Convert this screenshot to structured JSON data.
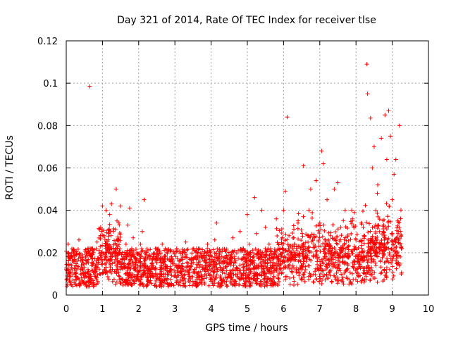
{
  "chart_data": {
    "type": "scatter",
    "title": "Day 321 of 2014, Rate Of TEC Index for receiver tlse",
    "xlabel": "GPS time / hours",
    "ylabel": "ROTI / TECUs",
    "xlim": [
      0,
      10
    ],
    "ylim": [
      0,
      0.12
    ],
    "xticks": [
      "0",
      "1",
      "2",
      "3",
      "4",
      "5",
      "6",
      "7",
      "8",
      "9",
      "10"
    ],
    "yticks": [
      "0",
      "0.02",
      "0.04",
      "0.06",
      "0.08",
      "0.1",
      "0.12"
    ],
    "grid": true,
    "marker": "+",
    "color": "#ff0000",
    "series": [
      {
        "name": "ROTI",
        "points": [
          [
            0.0,
            0.012
          ],
          [
            0.05,
            0.024
          ],
          [
            0.08,
            0.009
          ],
          [
            0.1,
            0.018
          ],
          [
            0.15,
            0.013
          ],
          [
            0.2,
            0.021
          ],
          [
            0.25,
            0.01
          ],
          [
            0.3,
            0.016
          ],
          [
            0.35,
            0.026
          ],
          [
            0.4,
            0.012
          ],
          [
            0.45,
            0.019
          ],
          [
            0.5,
            0.008
          ],
          [
            0.55,
            0.015
          ],
          [
            0.6,
            0.022
          ],
          [
            0.65,
            0.0985
          ],
          [
            0.7,
            0.014
          ],
          [
            0.75,
            0.02
          ],
          [
            0.8,
            0.011
          ],
          [
            0.85,
            0.025
          ],
          [
            0.9,
            0.017
          ],
          [
            0.95,
            0.032
          ],
          [
            1.0,
            0.042
          ],
          [
            1.05,
            0.028
          ],
          [
            1.1,
            0.04
          ],
          [
            1.15,
            0.022
          ],
          [
            1.2,
            0.038
          ],
          [
            1.25,
            0.043
          ],
          [
            1.3,
            0.03
          ],
          [
            1.35,
            0.018
          ],
          [
            1.38,
            0.05
          ],
          [
            1.4,
            0.035
          ],
          [
            1.45,
            0.026
          ],
          [
            1.5,
            0.042
          ],
          [
            1.55,
            0.02
          ],
          [
            1.6,
            0.015
          ],
          [
            1.65,
            0.024
          ],
          [
            1.7,
            0.033
          ],
          [
            1.75,
            0.041
          ],
          [
            1.8,
            0.018
          ],
          [
            1.85,
            0.027
          ],
          [
            1.9,
            0.013
          ],
          [
            1.95,
            0.02
          ],
          [
            2.0,
            0.016
          ],
          [
            2.05,
            0.024
          ],
          [
            2.1,
            0.03
          ],
          [
            2.15,
            0.045
          ],
          [
            2.2,
            0.019
          ],
          [
            2.25,
            0.012
          ],
          [
            2.3,
            0.017
          ],
          [
            2.4,
            0.014
          ],
          [
            2.5,
            0.019
          ],
          [
            2.6,
            0.012
          ],
          [
            2.65,
            0.024
          ],
          [
            2.7,
            0.016
          ],
          [
            2.8,
            0.011
          ],
          [
            2.9,
            0.018
          ],
          [
            3.0,
            0.014
          ],
          [
            3.05,
            0.022
          ],
          [
            3.1,
            0.013
          ],
          [
            3.2,
            0.02
          ],
          [
            3.3,
            0.025
          ],
          [
            3.4,
            0.012
          ],
          [
            3.5,
            0.017
          ],
          [
            3.6,
            0.022
          ],
          [
            3.7,
            0.011
          ],
          [
            3.8,
            0.016
          ],
          [
            3.9,
            0.024
          ],
          [
            4.0,
            0.015
          ],
          [
            4.1,
            0.026
          ],
          [
            4.15,
            0.034
          ],
          [
            4.2,
            0.018
          ],
          [
            4.3,
            0.012
          ],
          [
            4.4,
            0.021
          ],
          [
            4.5,
            0.015
          ],
          [
            4.6,
            0.027
          ],
          [
            4.7,
            0.013
          ],
          [
            4.8,
            0.03
          ],
          [
            4.9,
            0.018
          ],
          [
            5.0,
            0.038
          ],
          [
            5.05,
            0.024
          ],
          [
            5.1,
            0.016
          ],
          [
            5.2,
            0.046
          ],
          [
            5.25,
            0.029
          ],
          [
            5.3,
            0.02
          ],
          [
            5.4,
            0.04
          ],
          [
            5.45,
            0.014
          ],
          [
            5.5,
            0.032
          ],
          [
            5.6,
            0.024
          ],
          [
            5.7,
            0.018
          ],
          [
            5.8,
            0.036
          ],
          [
            5.9,
            0.022
          ],
          [
            6.0,
            0.04
          ],
          [
            6.05,
            0.049
          ],
          [
            6.1,
            0.084
          ],
          [
            6.15,
            0.028
          ],
          [
            6.2,
            0.016
          ],
          [
            6.3,
            0.024
          ],
          [
            6.4,
            0.034
          ],
          [
            6.5,
            0.012
          ],
          [
            6.55,
            0.061
          ],
          [
            6.6,
            0.018
          ],
          [
            6.7,
            0.04
          ],
          [
            6.75,
            0.05
          ],
          [
            6.8,
            0.026
          ],
          [
            6.9,
            0.054
          ],
          [
            7.0,
            0.034
          ],
          [
            7.05,
            0.068
          ],
          [
            7.1,
            0.062
          ],
          [
            7.15,
            0.02
          ],
          [
            7.2,
            0.045
          ],
          [
            7.3,
            0.028
          ],
          [
            7.4,
            0.05
          ],
          [
            7.5,
            0.053
          ],
          [
            7.6,
            0.022
          ],
          [
            7.7,
            0.04
          ],
          [
            7.8,
            0.018
          ],
          [
            7.9,
            0.036
          ],
          [
            8.0,
            0.026
          ],
          [
            8.1,
            0.02
          ],
          [
            8.2,
            0.032
          ],
          [
            8.3,
            0.109
          ],
          [
            8.32,
            0.095
          ],
          [
            8.4,
            0.0835
          ],
          [
            8.45,
            0.06
          ],
          [
            8.5,
            0.07
          ],
          [
            8.55,
            0.04
          ],
          [
            8.6,
            0.052
          ],
          [
            8.7,
            0.074
          ],
          [
            8.75,
            0.03
          ],
          [
            8.8,
            0.085
          ],
          [
            8.85,
            0.064
          ],
          [
            8.9,
            0.087
          ],
          [
            8.95,
            0.075
          ],
          [
            9.0,
            0.045
          ],
          [
            9.05,
            0.057
          ],
          [
            9.1,
            0.064
          ],
          [
            9.15,
            0.035
          ],
          [
            9.2,
            0.08
          ],
          [
            9.25,
            0.022
          ]
        ]
      }
    ]
  }
}
